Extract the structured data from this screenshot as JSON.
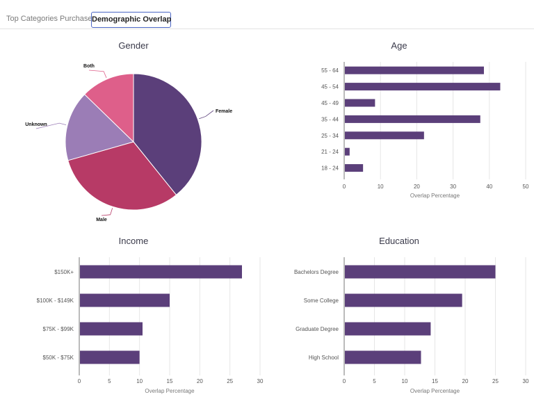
{
  "tabs": [
    {
      "label": "Top Categories Purchased",
      "active": false
    },
    {
      "label": "Demographic Overlap",
      "active": true
    }
  ],
  "colors": {
    "bar": "#5b3f7a",
    "grid": "#e6e6e6",
    "axis": "#777777",
    "tab_border": "#4b66c4"
  },
  "chart_data": [
    {
      "id": "gender",
      "type": "pie",
      "title": "Gender",
      "labels": [
        "Female",
        "Male",
        "Unknown",
        "Both"
      ],
      "values": [
        40,
        32,
        17,
        13
      ],
      "colors": [
        "#5b3f7a",
        "#b73a66",
        "#9b7db6",
        "#de5f8a"
      ]
    },
    {
      "id": "age",
      "type": "bar",
      "orientation": "horizontal",
      "title": "Age",
      "categories": [
        "55 - 64",
        "45 - 54",
        "45 - 49",
        "35 - 44",
        "25 - 34",
        "21 - 24",
        "18 - 24"
      ],
      "values": [
        38.5,
        43,
        8.5,
        37.5,
        22,
        1.5,
        5.2
      ],
      "xlabel": "Overlap Percentage",
      "xlim": [
        0,
        50
      ],
      "xticks": [
        0,
        10,
        20,
        30,
        40,
        50
      ],
      "grid": true
    },
    {
      "id": "income",
      "type": "bar",
      "orientation": "horizontal",
      "title": "Income",
      "categories": [
        "$150K+",
        "$100K - $149K",
        "$75K - $99K",
        "$50K - $75K"
      ],
      "values": [
        27,
        15,
        10.5,
        10
      ],
      "xlabel": "Overlap Percentage",
      "xlim": [
        0,
        30
      ],
      "xticks": [
        0,
        5,
        10,
        15,
        20,
        25,
        30
      ],
      "grid": true
    },
    {
      "id": "education",
      "type": "bar",
      "orientation": "horizontal",
      "title": "Education",
      "categories": [
        "Bachelors Degree",
        "Some College",
        "Graduate Degree",
        "High School"
      ],
      "values": [
        25,
        19.5,
        14.3,
        12.7
      ],
      "xlabel": "Overlap Percentage",
      "xlim": [
        0,
        30
      ],
      "xticks": [
        0,
        5,
        10,
        15,
        20,
        25,
        30
      ],
      "grid": true
    }
  ]
}
